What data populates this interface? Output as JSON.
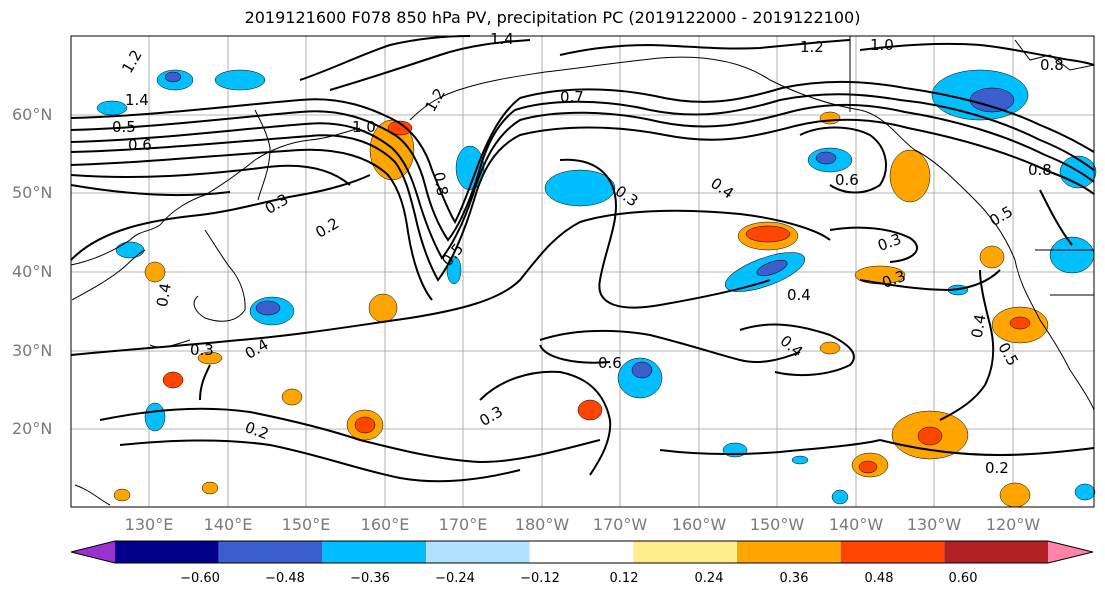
{
  "title": "2019121600 F078 850 hPa PV, precipitation PC (2019122000 - 2019122100)",
  "lat_labels": [
    "60°N",
    "50°N",
    "40°N",
    "30°N",
    "20°N"
  ],
  "lon_labels": [
    "130°E",
    "140°E",
    "150°E",
    "160°E",
    "170°E",
    "180°W",
    "170°W",
    "160°W",
    "150°W",
    "140°W",
    "130°W",
    "120°W"
  ],
  "contour_labels": [
    "1.2",
    "1.4",
    "0.5",
    "0.6",
    "1.2",
    "1.0",
    "0.8",
    "0.7",
    "0.3",
    "0.2",
    "0.4",
    "0.3",
    "0.5",
    "0.4",
    "0.3",
    "0.4",
    "0.3",
    "0.2",
    "0.2",
    "0.6",
    "0.3",
    "0.3",
    "0.4",
    "0.4",
    "0.5",
    "0.5",
    "0.8",
    "1.2",
    "1.0",
    "0.8",
    "1.4",
    "0.4",
    "0.6"
  ],
  "colorbar": {
    "ticks": [
      "−0.60",
      "−0.48",
      "−0.36",
      "−0.24",
      "−0.12",
      "0.12",
      "0.24",
      "0.36",
      "0.48",
      "0.60"
    ],
    "colors": [
      "#9a32cd",
      "#00008b",
      "#3a5fcd",
      "#00bfff",
      "#b0e2ff",
      "#ffffff",
      "#ffec8b",
      "#ffa500",
      "#ff4500",
      "#b22222",
      "#ff82ab"
    ]
  }
}
